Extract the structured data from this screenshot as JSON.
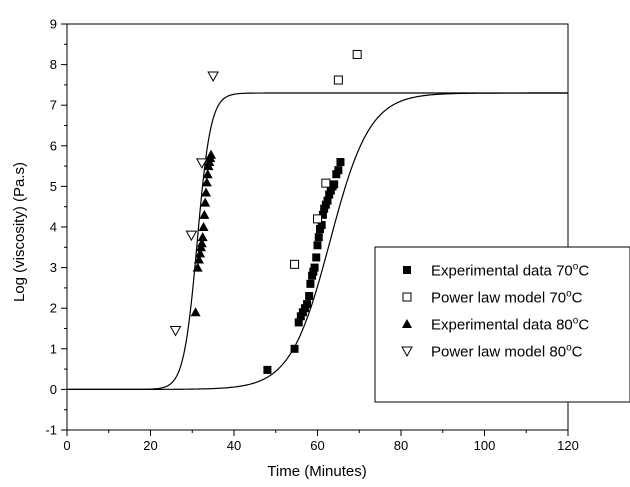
{
  "chart_data": {
    "type": "scatter",
    "xlabel": "Time (Minutes)",
    "ylabel": "Log (viscosity) (Pa.s)",
    "xlim": [
      0,
      120
    ],
    "ylim": [
      -1,
      9
    ],
    "x_ticks": [
      "0",
      "20",
      "40",
      "60",
      "80",
      "100",
      "120"
    ],
    "y_ticks": [
      "-1",
      "0",
      "1",
      "2",
      "3",
      "4",
      "5",
      "6",
      "7",
      "8",
      "9"
    ],
    "grid": false,
    "legend_position": "right",
    "series": [
      {
        "name": "Experimental data 70°C",
        "name_main": "Experimental data 70",
        "name_sup": "o",
        "name_end": "C",
        "marker": "filled-square",
        "x": [
          48,
          54.5,
          55.5,
          56,
          56.5,
          57,
          57.5,
          58,
          58.3,
          58.7,
          59,
          59.3,
          59.7,
          60,
          60.3,
          60.6,
          61,
          61.3,
          61.6,
          62,
          62.4,
          62.8,
          63.2,
          63.6,
          64,
          64.5,
          65,
          65.5
        ],
        "y": [
          0.48,
          1.0,
          1.65,
          1.8,
          1.9,
          2.0,
          2.1,
          2.3,
          2.6,
          2.8,
          2.9,
          3.0,
          3.25,
          3.55,
          3.75,
          3.95,
          4.05,
          4.3,
          4.45,
          4.55,
          4.65,
          4.8,
          4.9,
          5.0,
          5.05,
          5.3,
          5.4,
          5.6
        ]
      },
      {
        "name": "Power law model 70°C",
        "name_main": "Power law model 70",
        "name_sup": "o",
        "name_end": "C",
        "marker": "open-square",
        "x": [
          54.5,
          60,
          62,
          65,
          69.5
        ],
        "y": [
          3.08,
          4.2,
          5.08,
          7.62,
          8.25
        ]
      },
      {
        "name": "Experimental data 80°C",
        "name_main": "Experimental data 80",
        "name_sup": "o",
        "name_end": "C",
        "marker": "filled-triangle",
        "x": [
          30.8,
          31.3,
          31.6,
          31.9,
          32.1,
          32.3,
          32.5,
          32.7,
          32.9,
          33.1,
          33.3,
          33.5,
          33.7,
          33.9,
          34.1,
          34.3,
          34.5
        ],
        "y": [
          1.9,
          3.0,
          3.2,
          3.35,
          3.5,
          3.6,
          3.75,
          4.0,
          4.3,
          4.6,
          4.85,
          5.1,
          5.3,
          5.5,
          5.6,
          5.7,
          5.78
        ]
      },
      {
        "name": "Power law model 80°C",
        "name_main": "Power law model 80",
        "name_sup": "o",
        "name_end": "C",
        "marker": "open-triangle-down",
        "x": [
          26,
          29.8,
          32.3,
          35
        ],
        "y": [
          1.45,
          3.8,
          5.58,
          7.72
        ]
      }
    ],
    "fit_curves": [
      {
        "lower": 0,
        "upper": 7.3,
        "midpoint": 31.2,
        "rate": 0.62,
        "x_range": [
          0,
          120
        ]
      },
      {
        "lower": 0,
        "upper": 7.3,
        "midpoint": 63.0,
        "rate": 0.21,
        "x_range": [
          0,
          120
        ]
      }
    ]
  }
}
